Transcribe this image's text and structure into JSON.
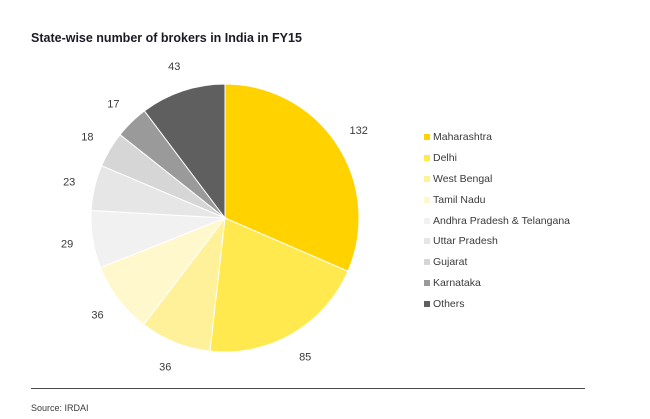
{
  "chart_data": {
    "type": "pie",
    "title": "State-wise number of brokers in India in FY15",
    "categories": [
      "Maharashtra",
      "Delhi",
      "West Bengal",
      "Tamil Nadu",
      "Andhra Pradesh & Telangana",
      "Uttar Pradesh",
      "Gujarat",
      "Karnataka",
      "Others"
    ],
    "values": [
      132,
      85,
      36,
      36,
      29,
      23,
      18,
      17,
      43
    ],
    "colors": [
      "#ffd200",
      "#ffe94f",
      "#fff199",
      "#fff8cc",
      "#f1f1f1",
      "#e6e6e6",
      "#d6d6d6",
      "#9a9a9a",
      "#5f5f5f"
    ],
    "start_angle": "12 o'clock",
    "direction": "clockwise",
    "legend_position": "right"
  },
  "source": "Source: IRDAI"
}
